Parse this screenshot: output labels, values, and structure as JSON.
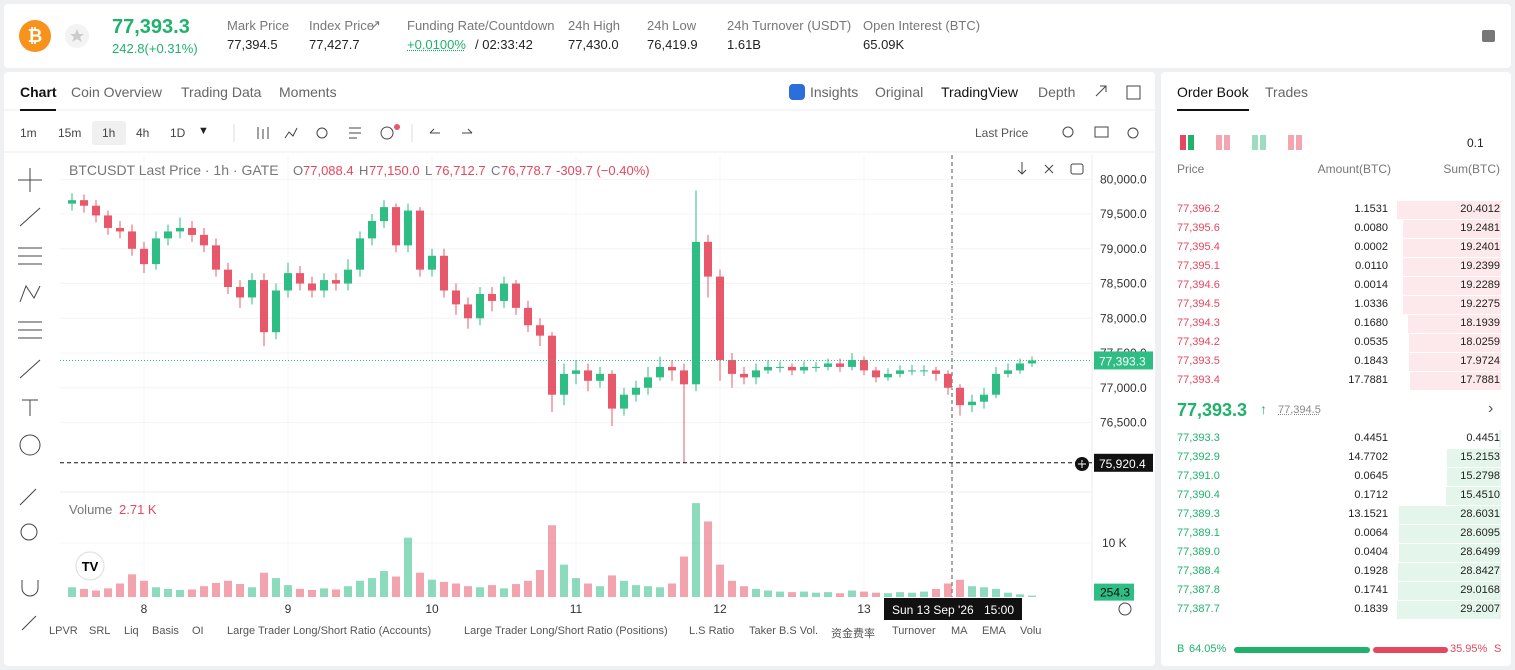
{
  "header": {
    "price": "77,393.3",
    "change": "242.8(+0.31%)",
    "stats": [
      {
        "label": "Mark Price",
        "value": "77,394.5"
      },
      {
        "label": "Index Price",
        "value": "77,427.7"
      },
      {
        "label": "Funding Rate/Countdown",
        "value": "+0.0100%",
        "extra": "/ 02:33:42"
      },
      {
        "label": "24h High",
        "value": "77,430.0"
      },
      {
        "label": "24h Low",
        "value": "76,419.9"
      },
      {
        "label": "24h Turnover (USDT)",
        "value": "1.61B"
      },
      {
        "label": "Open Interest (BTC)",
        "value": "65.09K"
      }
    ]
  },
  "tabs": [
    "Chart",
    "Coin Overview",
    "Trading Data",
    "Moments"
  ],
  "views": [
    "Insights",
    "Original",
    "TradingView",
    "Depth"
  ],
  "intervals": [
    "1m",
    "15m",
    "1h",
    "4h",
    "1D"
  ],
  "price_source": "Last Price",
  "chart_legend": {
    "title": "BTCUSDT Last Price · 1h · GATE",
    "ohlc": [
      {
        "k": "O",
        "v": "77,088.4"
      },
      {
        "k": "H",
        "v": "77,150.0"
      },
      {
        "k": "L",
        "v": "76,712.7"
      },
      {
        "k": "C",
        "v": "76,778.7"
      }
    ],
    "change": "-309.7 (−0.40%)",
    "volume_title": "Volume",
    "volume_value": "2.71 K"
  },
  "chart_data": {
    "type": "candlestick",
    "up_color": "#2ebd85",
    "down_color": "#e8586b",
    "x": [
      -12,
      -10,
      -8,
      -6,
      -4,
      -2,
      0,
      2,
      4,
      6,
      8,
      10,
      12,
      14,
      16,
      18,
      20,
      22,
      24,
      26,
      28,
      30,
      32,
      34,
      36,
      38,
      40,
      42,
      44,
      46,
      48,
      50,
      52,
      54,
      56,
      58,
      60,
      62,
      64,
      66,
      68,
      70,
      72,
      74,
      76,
      78,
      80,
      82,
      84,
      86,
      88,
      90,
      92,
      94,
      96,
      98,
      100,
      102,
      104,
      106,
      108,
      110,
      112,
      114,
      116,
      118,
      120,
      122,
      124,
      126,
      128,
      130,
      132,
      134,
      136,
      138,
      140,
      142,
      144,
      146,
      148
    ],
    "open": [
      79650,
      79700,
      79620,
      79480,
      79300,
      79250,
      79000,
      78780,
      79150,
      79250,
      79300,
      79200,
      79050,
      78700,
      78450,
      78300,
      78550,
      77800,
      78400,
      78650,
      78500,
      78400,
      78550,
      78500,
      78700,
      79150,
      79400,
      79600,
      79050,
      79550,
      78700,
      78900,
      78400,
      78200,
      78000,
      78350,
      78250,
      78500,
      78150,
      77900,
      77750,
      76900,
      77200,
      77250,
      77100,
      77200,
      76700,
      76900,
      77000,
      77150,
      77300,
      77250,
      77050,
      79100,
      78600,
      77400,
      77200,
      77150,
      77250,
      77300,
      77300,
      77250,
      77300,
      77300,
      77350,
      77300,
      77400,
      77250,
      77150,
      77200,
      77250,
      77250,
      77250,
      77200,
      77000,
      76750,
      76800,
      76900,
      77200,
      77250,
      77350
    ],
    "high": [
      79800,
      79780,
      79700,
      79550,
      79400,
      79350,
      79100,
      79250,
      79350,
      79450,
      79400,
      79300,
      79150,
      78800,
      78550,
      78650,
      78650,
      78500,
      78800,
      78750,
      78600,
      78650,
      78650,
      78850,
      79250,
      79500,
      79700,
      79650,
      79650,
      79600,
      79000,
      79000,
      78500,
      78300,
      78450,
      78450,
      78600,
      78550,
      78250,
      78000,
      77800,
      77350,
      77400,
      77350,
      77300,
      77250,
      77000,
      77100,
      77300,
      77450,
      77400,
      77350,
      79840,
      79200,
      78700,
      77500,
      77300,
      77350,
      77400,
      77380,
      77350,
      77380,
      77370,
      77420,
      77420,
      77500,
      77450,
      77300,
      77280,
      77320,
      77330,
      77320,
      77300,
      77250,
      77050,
      76900,
      77000,
      77300,
      77350,
      77420,
      77450
    ],
    "low": [
      79550,
      79520,
      79380,
      79200,
      79150,
      78900,
      78650,
      78700,
      79050,
      79150,
      79100,
      78950,
      78600,
      78350,
      78150,
      78200,
      77600,
      77700,
      78300,
      78400,
      78300,
      78300,
      78400,
      78400,
      78600,
      79050,
      79300,
      78950,
      78950,
      78600,
      78600,
      78300,
      78050,
      77850,
      77900,
      78100,
      78150,
      78050,
      77800,
      77600,
      76650,
      76750,
      77050,
      76950,
      77000,
      76450,
      76600,
      76800,
      76900,
      77100,
      77100,
      75920.4,
      76950,
      78300,
      77100,
      77000,
      77050,
      77050,
      77200,
      77220,
      77180,
      77200,
      77230,
      77250,
      77230,
      77250,
      77180,
      77080,
      77100,
      77150,
      77180,
      77170,
      77100,
      76900,
      76600,
      76650,
      76700,
      76850,
      77150,
      77200,
      77300
    ],
    "close": [
      79700,
      79620,
      79480,
      79300,
      79250,
      79000,
      78780,
      79150,
      79250,
      79300,
      79200,
      79050,
      78700,
      78450,
      78300,
      78550,
      77800,
      78400,
      78650,
      78500,
      78400,
      78550,
      78500,
      78700,
      79150,
      79400,
      79600,
      79050,
      79550,
      78700,
      78900,
      78400,
      78200,
      78000,
      78350,
      78250,
      78500,
      78150,
      77900,
      77750,
      76900,
      77200,
      77250,
      77100,
      77200,
      76700,
      76900,
      77000,
      77150,
      77300,
      77250,
      77050,
      79100,
      78600,
      77400,
      77200,
      77150,
      77250,
      77300,
      77300,
      77250,
      77300,
      77300,
      77350,
      77300,
      77400,
      77250,
      77150,
      77200,
      77250,
      77250,
      77250,
      77200,
      77000,
      76750,
      76800,
      76900,
      77200,
      77250,
      77350,
      77393.3
    ],
    "volume": [
      1800,
      1500,
      1200,
      1600,
      2500,
      4200,
      3000,
      1800,
      1500,
      1300,
      1400,
      2000,
      2600,
      3000,
      2400,
      1800,
      4500,
      3500,
      2200,
      1500,
      1300,
      1600,
      1400,
      2000,
      3000,
      3500,
      4800,
      3800,
      11000,
      4500,
      3200,
      2800,
      2500,
      2000,
      1800,
      2200,
      1600,
      2400,
      3000,
      5000,
      13300,
      6000,
      3500,
      2500,
      2000,
      4000,
      3000,
      2200,
      2000,
      1800,
      2500,
      7500,
      17400,
      14000,
      6000,
      3000,
      2000,
      1500,
      1200,
      1000,
      900,
      1000,
      800,
      900,
      700,
      1200,
      1000,
      800,
      700,
      900,
      800,
      1000,
      1500,
      2500,
      3200,
      2000,
      1800,
      1500,
      800,
      500,
      254.3
    ],
    "xlim": [
      -14,
      158
    ],
    "xticks": [
      {
        "value": 0,
        "label": "8"
      },
      {
        "value": 24,
        "label": "9"
      },
      {
        "value": 48,
        "label": "10"
      },
      {
        "value": 72,
        "label": "11"
      },
      {
        "value": 96,
        "label": "12"
      },
      {
        "value": 120,
        "label": "13"
      }
    ],
    "ylim": [
      75500,
      80350
    ],
    "yticks": [
      {
        "value": 80000,
        "label": "80,000.0"
      },
      {
        "value": 79500,
        "label": "79,500.0"
      },
      {
        "value": 79000,
        "label": "79,000.0"
      },
      {
        "value": 78500,
        "label": "78,500.0"
      },
      {
        "value": 78000,
        "label": "78,000.0"
      },
      {
        "value": 77500,
        "label": "77,500.0"
      },
      {
        "value": 77000,
        "label": "77,000.0"
      },
      {
        "value": 76500,
        "label": "76,500.0"
      }
    ],
    "vlim": [
      0,
      18900
    ],
    "vticks": [
      {
        "value": 10000,
        "label": "10 K"
      }
    ],
    "price_tags": [
      {
        "value": 77393.3,
        "label": "77,393.3"
      },
      {
        "value": 75920.4,
        "label": "75,920.4"
      }
    ],
    "crosshair": {
      "date": "Sun 13 Sep '26",
      "time": "15:00"
    }
  },
  "indicators": [
    "LPVR",
    "SRL",
    "Liq",
    "Basis",
    "OI",
    "Large Trader Long/Short Ratio (Accounts)",
    "Large Trader Long/Short Ratio (Positions)",
    "L.S Ratio",
    "Taker B.S Vol.",
    "资金费率",
    "Turnover",
    "MA",
    "EMA",
    "Volu"
  ],
  "order_book": {
    "tabs": [
      "Order Book",
      "Trades"
    ],
    "step": "0.1",
    "columns": [
      "Price",
      "Amount(BTC)",
      "Sum(BTC)"
    ],
    "asks": [
      [
        "77,396.2",
        "1.1531",
        "20.4012"
      ],
      [
        "77,395.6",
        "0.0080",
        "19.2481"
      ],
      [
        "77,395.4",
        "0.0002",
        "19.2401"
      ],
      [
        "77,395.1",
        "0.0110",
        "19.2399"
      ],
      [
        "77,394.6",
        "0.0014",
        "19.2289"
      ],
      [
        "77,394.5",
        "1.0336",
        "19.2275"
      ],
      [
        "77,394.3",
        "0.1680",
        "18.1939"
      ],
      [
        "77,394.2",
        "0.0535",
        "18.0259"
      ],
      [
        "77,393.5",
        "0.1843",
        "17.9724"
      ],
      [
        "77,393.4",
        "17.7881",
        "17.7881"
      ]
    ],
    "mid": "77,393.3",
    "mark": "77,394.5",
    "bids": [
      [
        "77,393.3",
        "0.4451",
        "0.4451"
      ],
      [
        "77,392.9",
        "14.7702",
        "15.2153"
      ],
      [
        "77,391.0",
        "0.0645",
        "15.2798"
      ],
      [
        "77,390.4",
        "0.1712",
        "15.4510"
      ],
      [
        "77,389.3",
        "13.1521",
        "28.6031"
      ],
      [
        "77,389.1",
        "0.0064",
        "28.6095"
      ],
      [
        "77,389.0",
        "0.0404",
        "28.6499"
      ],
      [
        "77,388.4",
        "0.1928",
        "28.8427"
      ],
      [
        "77,387.8",
        "0.1741",
        "29.0168"
      ],
      [
        "77,387.7",
        "0.1839",
        "29.2007"
      ]
    ],
    "ratio": {
      "b": "B",
      "s": "S",
      "buy": 64.05,
      "sell": 35.95,
      "buy_label": "64.05%",
      "sell_label": "35.95%"
    }
  }
}
